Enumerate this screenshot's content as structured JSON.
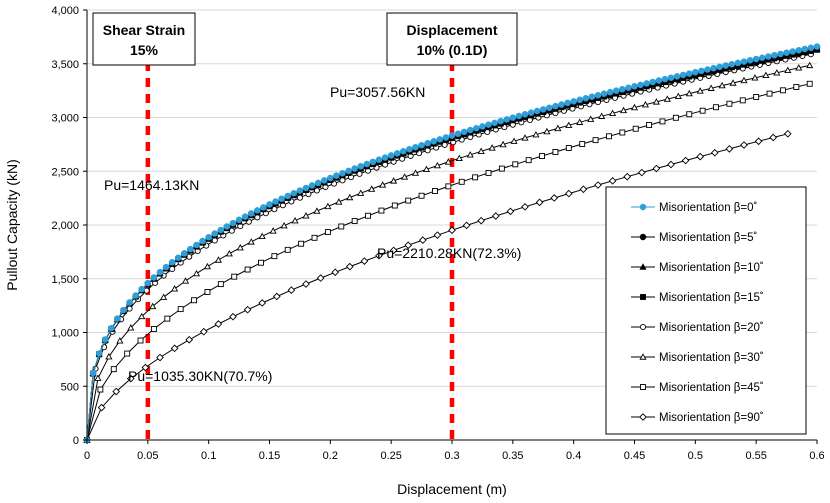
{
  "chart_data": {
    "type": "line",
    "title": "",
    "xlabel": "Displacement (m)",
    "ylabel": "Pullout Capacity (kN)",
    "xlim": [
      0,
      0.6
    ],
    "ylim": [
      0,
      4000
    ],
    "x_ticks": [
      "0",
      "0.05",
      "0.1",
      "0.15",
      "0.2",
      "0.25",
      "0.3",
      "0.35",
      "0.4",
      "0.45",
      "0.5",
      "0.55",
      "0.6"
    ],
    "y_ticks": [
      "0",
      "500",
      "1,000",
      "1,500",
      "2,000",
      "2,500",
      "3,000",
      "3,500",
      "4,000"
    ],
    "grid": true,
    "legend_position": "bottom-right",
    "series": [
      {
        "name": "Misorientation β=0˚",
        "marker": "circle-filled",
        "color": "#2e9fd8",
        "x_end": 0.6,
        "y_end": 3660
      },
      {
        "name": "Misorientation β=5˚",
        "marker": "circle-filled",
        "color": "#000000",
        "x_end": 0.6,
        "y_end": 3650
      },
      {
        "name": "Misorientation β=10˚",
        "marker": "triangle-filled",
        "color": "#000000",
        "x_end": 0.6,
        "y_end": 3640
      },
      {
        "name": "Misorientation β=15˚",
        "marker": "square-filled",
        "color": "#000000",
        "x_end": 0.6,
        "y_end": 3630
      },
      {
        "name": "Misorientation β=20˚",
        "marker": "circle-open",
        "color": "#000000",
        "x_end": 0.6,
        "y_end": 3600
      },
      {
        "name": "Misorientation β=30˚",
        "marker": "triangle-open",
        "color": "#000000",
        "x_end": 0.6,
        "y_end": 3500
      },
      {
        "name": "Misorientation β=45˚",
        "marker": "square-open",
        "color": "#000000",
        "x_end": 0.6,
        "y_end": 3330
      },
      {
        "name": "Misorientation β=90˚",
        "marker": "diamond-open",
        "color": "#000000",
        "x_end": 0.58,
        "y_end": 2860
      }
    ],
    "reference_lines": [
      {
        "x": 0.05,
        "color": "#ff0000",
        "style": "dashed",
        "label": "Shear  Strain\n15%"
      },
      {
        "x": 0.3,
        "color": "#ff0000",
        "style": "dashed",
        "label": "Displacement\n10% (0.1D)"
      }
    ],
    "annotations": [
      "Pu=3057.56KN",
      "Pu=1464.13KN",
      "Pu=2210.28KN(72.3%)",
      "Pu=1035.30KN(70.7%)"
    ]
  },
  "boxes": {
    "shear_line1": "Shear  Strain",
    "shear_line2": "15%",
    "disp_line1": "Displacement",
    "disp_line2": "10% (0.1D)"
  }
}
